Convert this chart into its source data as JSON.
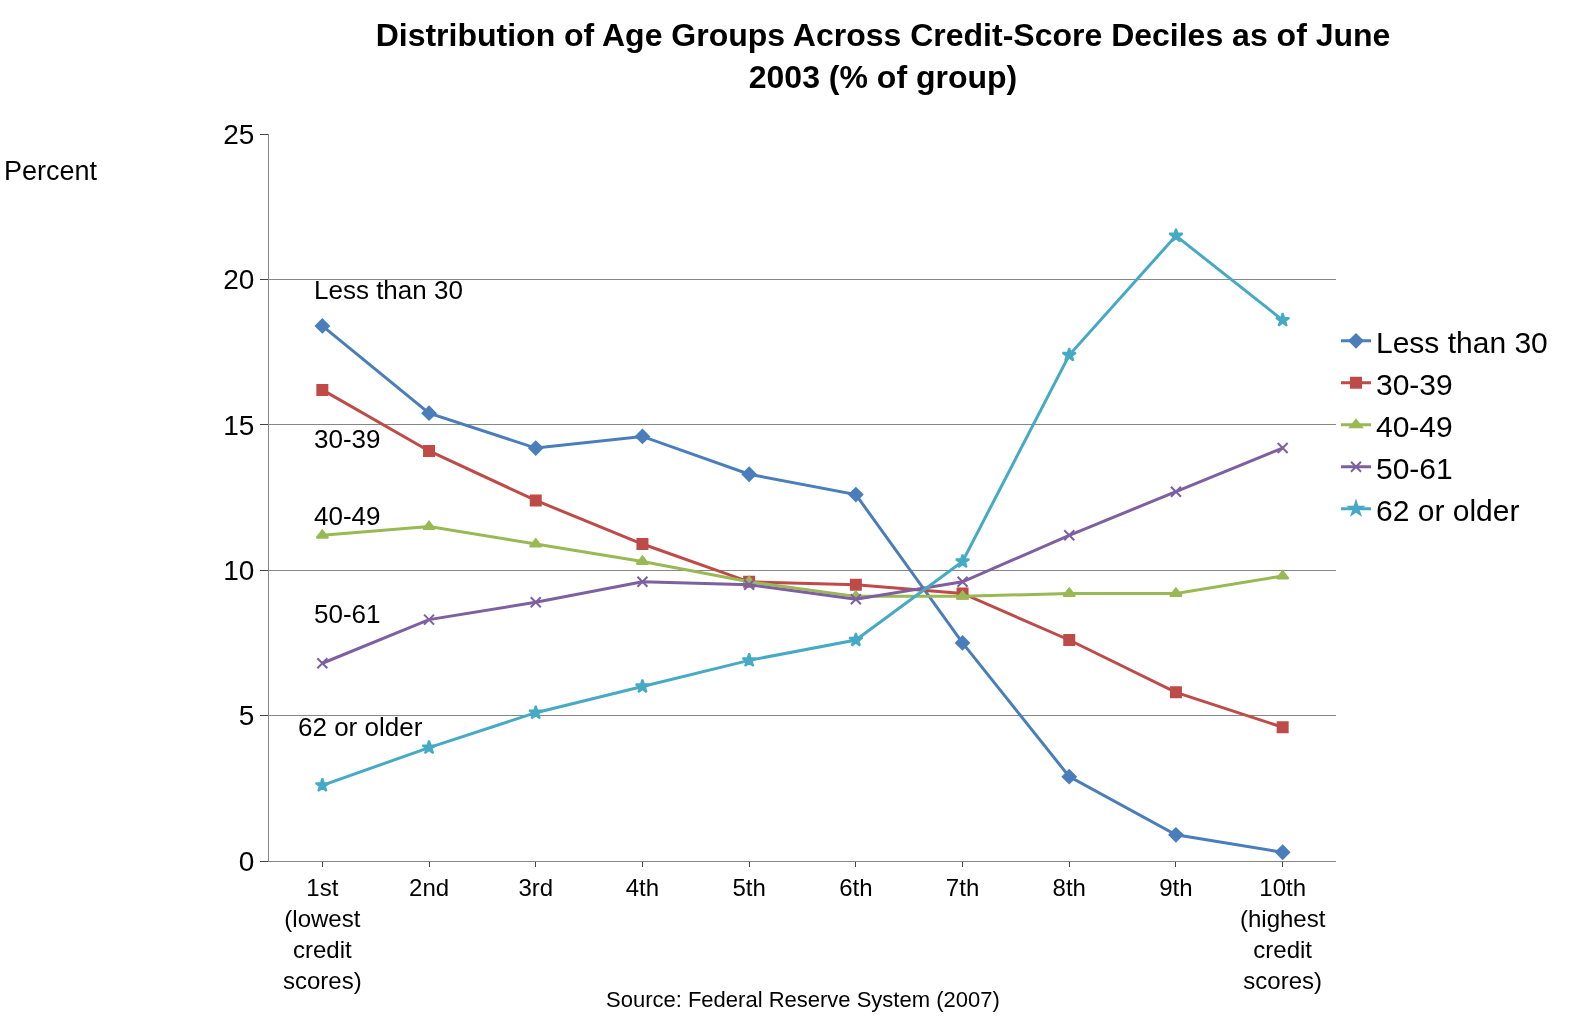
{
  "chart_data": {
    "type": "line",
    "title": "Distribution of Age Groups Across Credit-Score Deciles as of June\n2003 (% of group)",
    "ylabel": "Percent",
    "categories": [
      "1st\n(lowest\ncredit\nscores)",
      "2nd",
      "3rd",
      "4th",
      "5th",
      "6th",
      "7th",
      "8th",
      "9th",
      "10th\n(highest\ncredit\nscores)"
    ],
    "series": [
      {
        "name": "Less than 30",
        "color": "#4a7ebb",
        "marker": "diamond",
        "values": [
          18.4,
          15.4,
          14.2,
          14.6,
          13.3,
          12.6,
          7.5,
          2.9,
          0.9,
          0.3
        ]
      },
      {
        "name": "30-39",
        "color": "#be4b48",
        "marker": "square",
        "values": [
          16.2,
          14.1,
          12.4,
          10.9,
          9.6,
          9.5,
          9.2,
          7.6,
          5.8,
          4.6
        ]
      },
      {
        "name": "40-49",
        "color": "#98b954",
        "marker": "triangle",
        "values": [
          11.2,
          11.5,
          10.9,
          10.3,
          9.6,
          9.1,
          9.1,
          9.2,
          9.2,
          9.8
        ]
      },
      {
        "name": "50-61",
        "color": "#7d60a0",
        "marker": "cross",
        "values": [
          6.8,
          8.3,
          8.9,
          9.6,
          9.5,
          9.0,
          9.6,
          11.2,
          12.7,
          14.2
        ]
      },
      {
        "name": "62 or older",
        "color": "#46aac5",
        "marker": "star",
        "values": [
          2.6,
          3.9,
          5.1,
          6.0,
          6.9,
          7.6,
          10.3,
          17.4,
          21.5,
          18.6
        ]
      }
    ],
    "ylim": [
      0,
      25
    ],
    "yticks": [
      0,
      5,
      10,
      15,
      20,
      25
    ],
    "grid": "y",
    "legend": "right",
    "line_style": "solid",
    "annotations": [
      "Less than 30",
      "30-39",
      "40-49",
      "50-61",
      "62 or older",
      "Source: Federal Reserve System (2007)"
    ]
  }
}
